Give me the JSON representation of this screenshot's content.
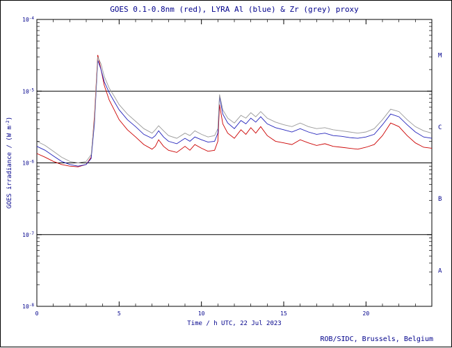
{
  "title": "GOES 0.1-0.8nm (red), LYRA Al (blue) & Zr (grey) proxy",
  "xlabel": "Time / h UTC, 22 Jul 2023",
  "ylabel": {
    "pre": "GOES irradiance / (W m",
    "sup": "-2",
    "post": ")"
  },
  "credit": "ROB/SIDC, Brussels, Belgium",
  "colors": {
    "red": "#cc0000",
    "blue": "#2222bb",
    "grey": "#999999",
    "text": "#00008B",
    "frame": "#000000",
    "background": "#ffffff"
  },
  "flare_classes": [
    {
      "label": "M",
      "between": [
        -5,
        -4
      ]
    },
    {
      "label": "C",
      "between": [
        -6,
        -5
      ]
    },
    {
      "label": "B",
      "between": [
        -7,
        -6
      ]
    },
    {
      "label": "A",
      "between": [
        -8,
        -7
      ]
    }
  ],
  "chart_data": {
    "type": "line",
    "title": "GOES 0.1-0.8nm (red), LYRA Al (blue) & Zr (grey) proxy",
    "xlabel": "Time / h UTC, 22 Jul 2023",
    "ylabel": "GOES irradiance / (W m^-2)",
    "x_range": [
      0,
      24
    ],
    "y_log_range": [
      -8,
      -4
    ],
    "x_major_ticks": [
      0,
      5,
      10,
      15,
      20
    ],
    "x_minor_step": 1,
    "y_tick_exponents": [
      -8,
      -7,
      -6,
      -5,
      -4
    ],
    "hlines_exponents": [
      -7,
      -6,
      -5
    ],
    "grid": false,
    "legend_position": "none",
    "unit_multiplier": 1e-06,
    "x": [
      0,
      0.5,
      1,
      1.5,
      2,
      2.5,
      3,
      3.3,
      3.5,
      3.7,
      3.9,
      4.1,
      4.4,
      4.7,
      5,
      5.5,
      6,
      6.5,
      7,
      7.2,
      7.4,
      7.7,
      8,
      8.5,
      9,
      9.3,
      9.6,
      10,
      10.4,
      10.8,
      11,
      11.1,
      11.3,
      11.6,
      12,
      12.4,
      12.7,
      13,
      13.3,
      13.6,
      14,
      14.5,
      15,
      15.5,
      16,
      16.5,
      17,
      17.5,
      18,
      18.5,
      19,
      19.5,
      20,
      20.5,
      21,
      21.5,
      22,
      22.5,
      23,
      23.5,
      24
    ],
    "series": [
      {
        "name": "GOES 0.1-0.8nm",
        "color_key": "red",
        "values": [
          1.35,
          1.2,
          1.05,
          0.95,
          0.9,
          0.88,
          0.95,
          1.2,
          4.5,
          32,
          20,
          12,
          7.5,
          5.5,
          4.0,
          2.9,
          2.3,
          1.8,
          1.55,
          1.7,
          2.1,
          1.7,
          1.5,
          1.4,
          1.7,
          1.5,
          1.8,
          1.6,
          1.45,
          1.5,
          2.0,
          6.5,
          3.5,
          2.6,
          2.2,
          2.9,
          2.5,
          3.1,
          2.6,
          3.2,
          2.4,
          2.0,
          1.9,
          1.8,
          2.1,
          1.9,
          1.75,
          1.85,
          1.7,
          1.65,
          1.6,
          1.55,
          1.65,
          1.8,
          2.4,
          3.6,
          3.2,
          2.4,
          1.9,
          1.65,
          1.6
        ]
      },
      {
        "name": "LYRA Al proxy",
        "color_key": "blue",
        "values": [
          1.7,
          1.5,
          1.25,
          1.05,
          0.95,
          0.9,
          0.95,
          1.15,
          3.5,
          27,
          20,
          13.5,
          9.5,
          7.2,
          5.5,
          4.0,
          3.2,
          2.5,
          2.2,
          2.4,
          2.8,
          2.3,
          2.0,
          1.85,
          2.2,
          2.0,
          2.3,
          2.1,
          1.95,
          2.0,
          2.6,
          8.5,
          4.8,
          3.6,
          3.0,
          3.9,
          3.5,
          4.2,
          3.7,
          4.4,
          3.5,
          3.1,
          2.9,
          2.7,
          3.0,
          2.7,
          2.5,
          2.6,
          2.4,
          2.35,
          2.25,
          2.2,
          2.3,
          2.5,
          3.4,
          4.8,
          4.4,
          3.4,
          2.7,
          2.3,
          2.2
        ]
      },
      {
        "name": "LYRA Zr proxy",
        "color_key": "grey",
        "values": [
          2.0,
          1.75,
          1.45,
          1.2,
          1.05,
          1.0,
          1.05,
          1.3,
          4.0,
          30,
          24,
          16,
          11,
          8.5,
          6.5,
          4.8,
          3.8,
          3.0,
          2.6,
          2.9,
          3.3,
          2.8,
          2.4,
          2.2,
          2.6,
          2.4,
          2.8,
          2.5,
          2.3,
          2.4,
          3.0,
          9.0,
          5.5,
          4.2,
          3.6,
          4.6,
          4.2,
          5.0,
          4.4,
          5.2,
          4.2,
          3.7,
          3.4,
          3.2,
          3.6,
          3.2,
          3.0,
          3.1,
          2.9,
          2.8,
          2.7,
          2.6,
          2.7,
          3.0,
          4.0,
          5.6,
          5.2,
          4.0,
          3.2,
          2.8,
          2.6
        ]
      }
    ]
  }
}
